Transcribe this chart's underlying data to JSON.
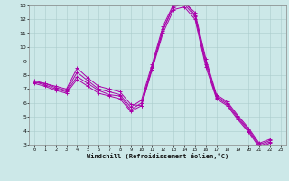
{
  "xlabel": "Windchill (Refroidissement éolien,°C)",
  "xlim": [
    -0.5,
    23.5
  ],
  "ylim": [
    3,
    13
  ],
  "xticks": [
    0,
    1,
    2,
    3,
    4,
    5,
    6,
    7,
    8,
    9,
    10,
    11,
    12,
    13,
    14,
    15,
    16,
    17,
    18,
    19,
    20,
    21,
    22,
    23
  ],
  "yticks": [
    3,
    4,
    5,
    6,
    7,
    8,
    9,
    10,
    11,
    12,
    13
  ],
  "bg_color": "#cce8e8",
  "line_color": "#aa00aa",
  "grid_color": "#aacccc",
  "lines": [
    [
      7.5,
      7.4,
      7.2,
      7.0,
      8.5,
      7.8,
      7.2,
      7.0,
      6.8,
      5.9,
      5.8,
      8.5,
      11.2,
      13.0,
      13.2,
      12.5,
      9.2,
      6.6,
      6.1,
      5.1,
      4.2,
      3.1,
      3.4
    ],
    [
      7.6,
      7.4,
      7.1,
      6.9,
      8.2,
      7.6,
      7.0,
      6.8,
      6.6,
      5.7,
      6.2,
      8.8,
      11.5,
      13.1,
      13.3,
      12.3,
      9.0,
      6.5,
      6.0,
      5.0,
      4.1,
      3.0,
      3.3
    ],
    [
      7.5,
      7.3,
      7.0,
      6.8,
      7.9,
      7.4,
      6.9,
      6.6,
      6.5,
      5.5,
      6.0,
      8.6,
      11.3,
      12.9,
      13.1,
      12.2,
      8.8,
      6.4,
      5.9,
      4.9,
      4.0,
      2.9,
      3.2
    ],
    [
      7.4,
      7.2,
      6.9,
      6.7,
      7.7,
      7.2,
      6.7,
      6.5,
      6.3,
      5.4,
      5.8,
      8.4,
      11.0,
      12.7,
      12.9,
      12.0,
      8.6,
      6.3,
      5.8,
      4.8,
      3.9,
      2.8,
      3.1
    ]
  ]
}
